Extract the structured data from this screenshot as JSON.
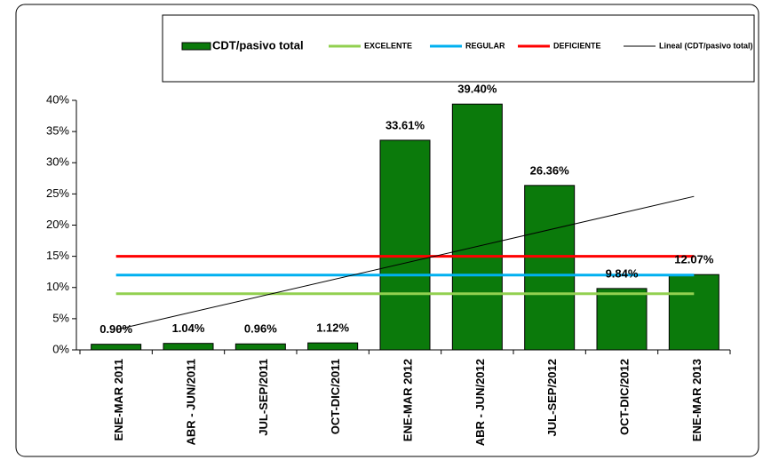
{
  "chart_data": {
    "type": "bar",
    "categories": [
      "ENE-MAR 2011",
      "ABR - JUN/2011",
      "JUL-SEP/2011",
      "OCT-DIC/2011",
      "ENE-MAR 2012",
      "ABR - JUN/2012",
      "JUL-SEP/2012",
      "OCT-DIC/2012",
      "ENE-MAR 2013"
    ],
    "series": [
      {
        "name": "CDT/pasivo total",
        "color": "#0b7a0b",
        "values": [
          0.9,
          1.04,
          0.96,
          1.12,
          33.61,
          39.4,
          26.36,
          9.84,
          12.07
        ],
        "value_labels": [
          "0.90%",
          "1.04%",
          "0.96%",
          "1.12%",
          "33.61%",
          "39.40%",
          "26.36%",
          "9.84%",
          "12.07%"
        ]
      }
    ],
    "reference_lines": [
      {
        "name": "EXCELENTE",
        "color": "#92d050",
        "value": 9
      },
      {
        "name": "REGULAR",
        "color": "#00b0f0",
        "value": 12
      },
      {
        "name": "DEFICIENTE",
        "color": "#ff0000",
        "value": 15
      }
    ],
    "trendline": {
      "name": "Lineal (CDT/pasivo total)",
      "color": "#000000"
    },
    "ylim": [
      0,
      40
    ],
    "yticks": [
      {
        "value": 0,
        "label": "0%"
      },
      {
        "value": 5,
        "label": "5%"
      },
      {
        "value": 10,
        "label": "10%"
      },
      {
        "value": 15,
        "label": "15%"
      },
      {
        "value": 20,
        "label": "20%"
      },
      {
        "value": 25,
        "label": "25%"
      },
      {
        "value": 30,
        "label": "30%"
      },
      {
        "value": 35,
        "label": "35%"
      },
      {
        "value": 40,
        "label": "40%"
      }
    ]
  }
}
